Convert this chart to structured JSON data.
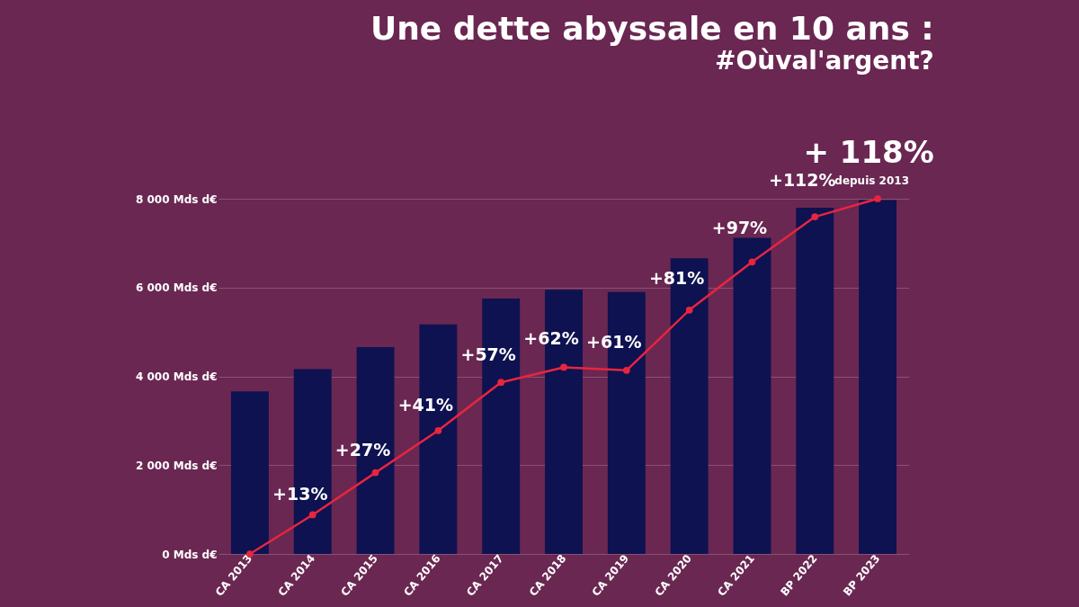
{
  "chart_data": {
    "type": "bar",
    "title": "Une dette abyssale en 10 ans :",
    "subtitle": "#Oùval'argent?",
    "categories": [
      "CA 2013",
      "CA 2014",
      "CA 2015",
      "CA 2016",
      "CA 2017",
      "CA 2018",
      "CA 2019",
      "CA 2020",
      "CA 2021",
      "BP 2022",
      "BP 2023"
    ],
    "series": [
      {
        "color": "#0e1250",
        "values": [
          3660,
          4160,
          4660,
          5170,
          5750,
          5950,
          5900,
          6660,
          7120,
          7800,
          7970
        ]
      },
      {
        "type": "line",
        "axis": "y2",
        "color": "#e8253f",
        "values": [
          0,
          13,
          27,
          41,
          57,
          62,
          61,
          81,
          97,
          112,
          118
        ],
        "value_labels": [
          null,
          "+13%",
          "+27%",
          "+41%",
          "+57%",
          "+62%",
          "+61%",
          "+81%",
          "+97%",
          "+112%",
          "+ 118%"
        ]
      }
    ],
    "ylim": [
      0,
      8000
    ],
    "yticks": [
      {
        "value": 0,
        "label": "0 Mds d€"
      },
      {
        "value": 2000,
        "label": "2 000 Mds d€"
      },
      {
        "value": 4000,
        "label": "4 000 Mds d€"
      },
      {
        "value": 6000,
        "label": "6 000 Mds d€"
      },
      {
        "value": 8000,
        "label": "8 000 Mds d€"
      }
    ],
    "grid": "y",
    "marker": "circle",
    "annotations": [
      "depuis 2013"
    ]
  }
}
